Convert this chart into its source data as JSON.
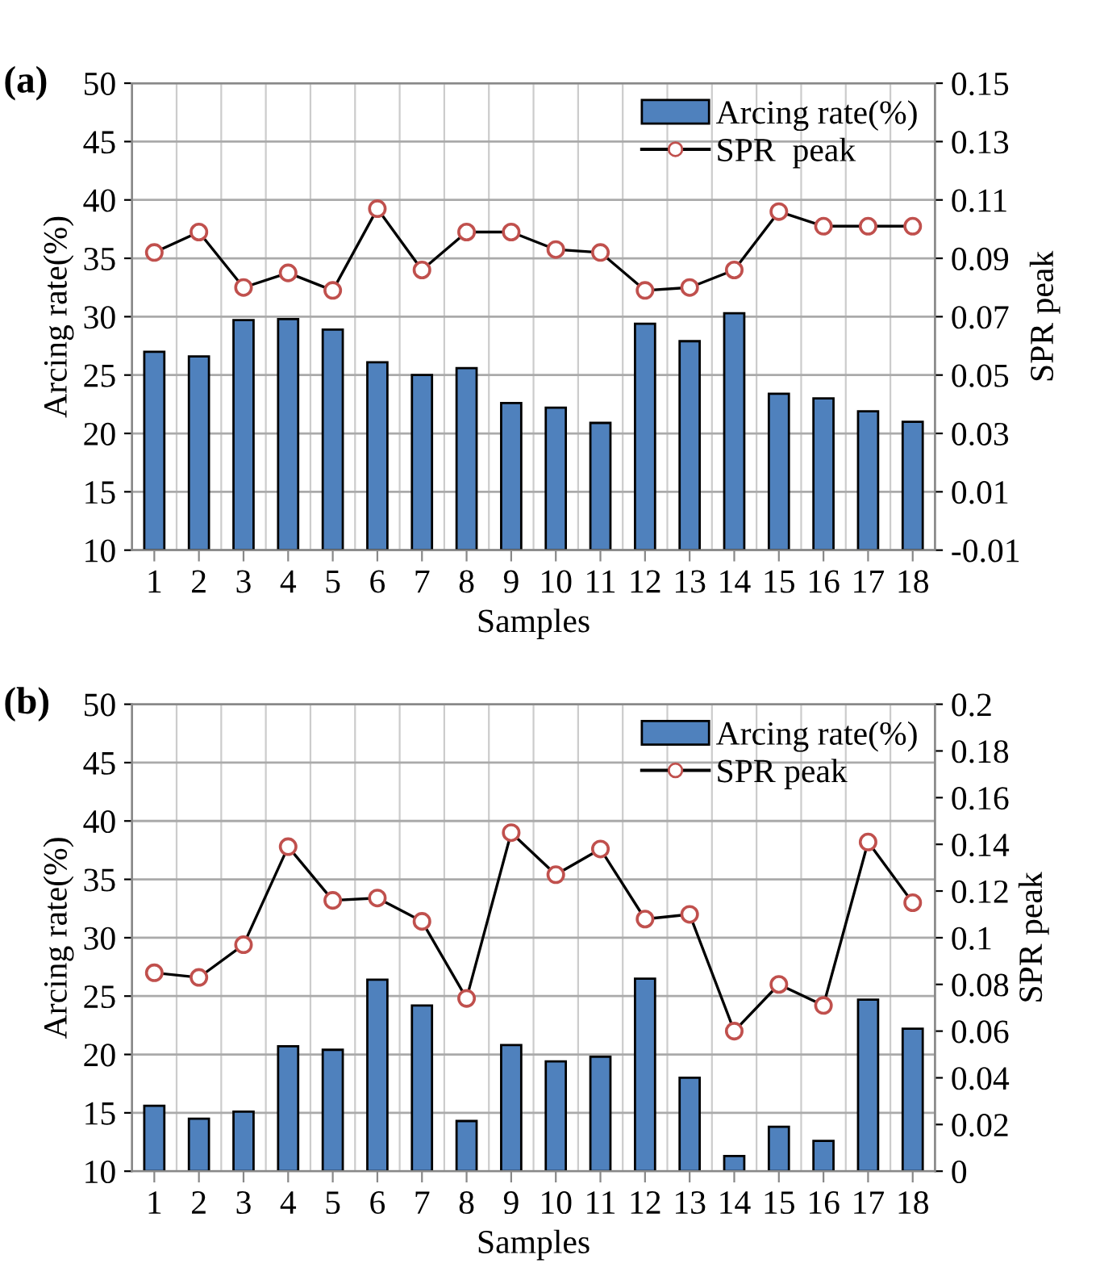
{
  "chart_data": [
    {
      "type": "bar",
      "title": "(a)",
      "xlabel": "Samples",
      "ylabel": "Arcing rate(%)",
      "y2label": "SPR peak",
      "categories": [
        "1",
        "2",
        "3",
        "4",
        "5",
        "6",
        "7",
        "8",
        "9",
        "10",
        "11",
        "12",
        "13",
        "14",
        "15",
        "16",
        "17",
        "18"
      ],
      "series": [
        {
          "name": "Arcing rate(%)",
          "color": "#4f81bd",
          "values": [
            27.0,
            26.6,
            29.7,
            29.8,
            28.9,
            26.1,
            25.0,
            25.6,
            22.6,
            22.2,
            20.9,
            29.4,
            27.9,
            30.3,
            23.4,
            23.0,
            21.9,
            21.0
          ]
        },
        {
          "name": "SPR  peak",
          "type": "line",
          "axis": "y2",
          "color": "#c0504d",
          "marker": "circle",
          "values": [
            0.092,
            0.099,
            0.08,
            0.085,
            0.079,
            0.107,
            0.086,
            0.099,
            0.099,
            0.093,
            0.092,
            0.079,
            0.08,
            0.086,
            0.106,
            0.101,
            0.101,
            0.101
          ]
        }
      ],
      "ylim": [
        10,
        50
      ],
      "yticks": [
        10,
        15,
        20,
        25,
        30,
        35,
        40,
        45,
        50
      ],
      "y2lim": [
        -0.01,
        0.15
      ],
      "y2ticks": [
        -0.01,
        0.01,
        0.03,
        0.05,
        0.07,
        0.09,
        0.11,
        0.13,
        0.15
      ],
      "grid": true,
      "legend": "top right"
    },
    {
      "type": "bar",
      "title": "(b)",
      "xlabel": "Samples",
      "ylabel": "Arcing rate(%)",
      "y2label": "SPR peak",
      "categories": [
        "1",
        "2",
        "3",
        "4",
        "5",
        "6",
        "7",
        "8",
        "9",
        "10",
        "11",
        "12",
        "13",
        "14",
        "15",
        "16",
        "17",
        "18"
      ],
      "series": [
        {
          "name": "Arcing rate(%)",
          "color": "#4f81bd",
          "values": [
            15.6,
            14.5,
            15.1,
            20.7,
            20.4,
            26.4,
            24.2,
            14.3,
            20.8,
            19.4,
            19.8,
            26.5,
            18.0,
            11.3,
            13.8,
            12.6,
            24.7,
            22.2
          ]
        },
        {
          "name": "SPR peak",
          "type": "line",
          "axis": "y2",
          "color": "#c0504d",
          "marker": "circle",
          "values": [
            0.085,
            0.083,
            0.097,
            0.139,
            0.116,
            0.117,
            0.107,
            0.074,
            0.145,
            0.127,
            0.138,
            0.108,
            0.11,
            0.06,
            0.08,
            0.071,
            0.141,
            0.115
          ]
        }
      ],
      "ylim": [
        10,
        50
      ],
      "yticks": [
        10,
        15,
        20,
        25,
        30,
        35,
        40,
        45,
        50
      ],
      "y2lim": [
        0,
        0.2
      ],
      "y2ticks": [
        0,
        0.02,
        0.04,
        0.06,
        0.08,
        0.1,
        0.12,
        0.14,
        0.16,
        0.18,
        0.2
      ],
      "grid": true,
      "legend": "top right"
    }
  ]
}
